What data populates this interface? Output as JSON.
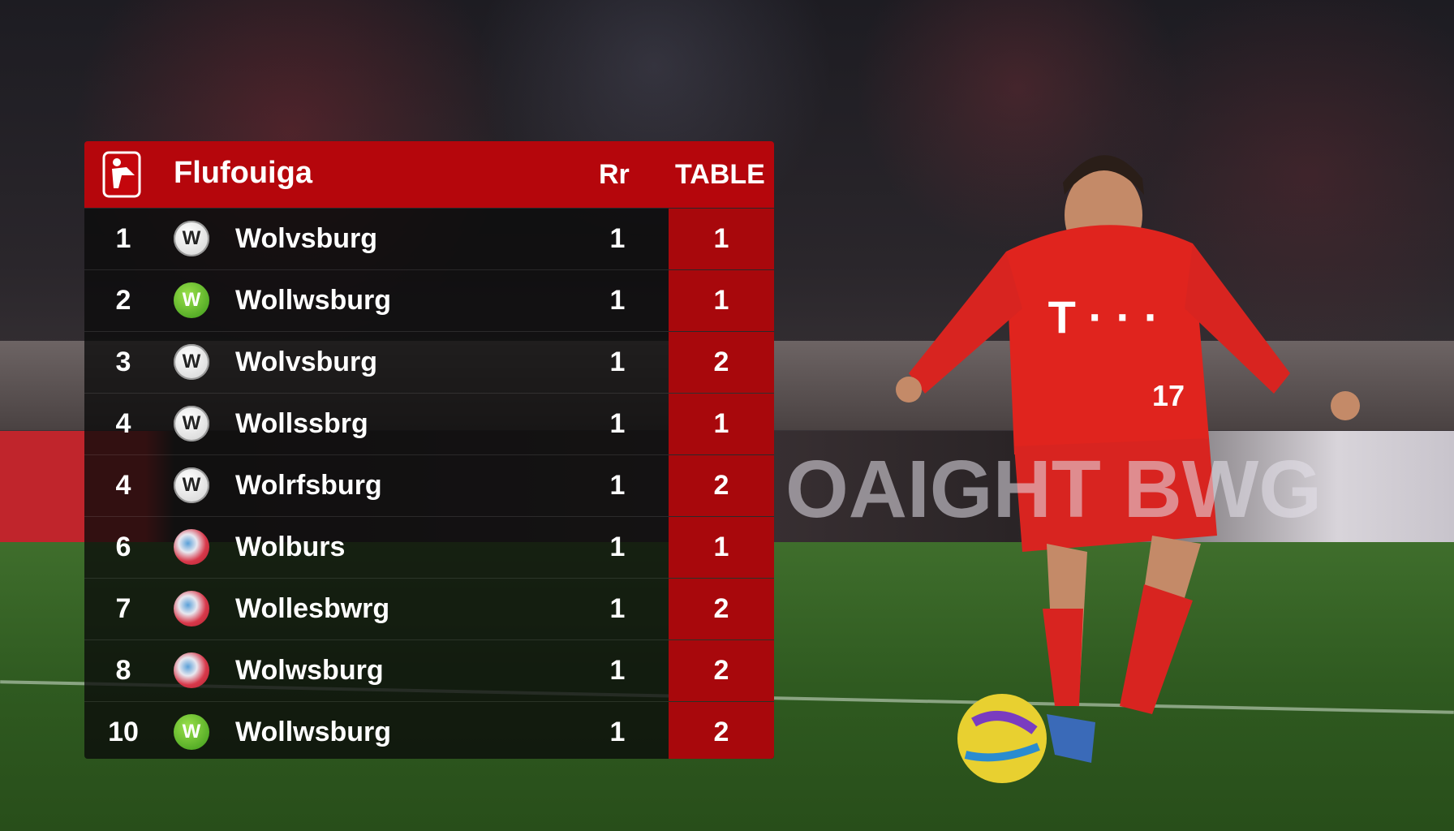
{
  "table": {
    "title": "Flufouiga",
    "col1_header": "Rr",
    "col2_header": "TABLE",
    "rows": [
      {
        "rank": "1",
        "team": "Wolvsburg",
        "crest": "wolf-crest",
        "c1": "1",
        "c2": "1"
      },
      {
        "rank": "2",
        "team": "Wollwsburg",
        "crest": "green-wolf-crest",
        "c1": "1",
        "c2": "1"
      },
      {
        "rank": "3",
        "team": "Wolvsburg",
        "crest": "wolf-crest",
        "c1": "1",
        "c2": "2"
      },
      {
        "rank": "4",
        "team": "Wollssbrg",
        "crest": "wolf-crest",
        "c1": "1",
        "c2": "1"
      },
      {
        "rank": "4",
        "team": "Wolrfsburg",
        "crest": "wolf-crest",
        "c1": "1",
        "c2": "2"
      },
      {
        "rank": "6",
        "team": "Wolburs",
        "crest": "bayern-crest",
        "c1": "1",
        "c2": "1"
      },
      {
        "rank": "7",
        "team": "Wollesbwrg",
        "crest": "bayern-crest",
        "c1": "1",
        "c2": "2"
      },
      {
        "rank": "8",
        "team": "Wolwsburg",
        "crest": "bayern-crest",
        "c1": "1",
        "c2": "2"
      },
      {
        "rank": "10",
        "team": "Wollwsburg",
        "crest": "green-wolf-crest",
        "c1": "1",
        "c2": "2"
      }
    ]
  },
  "background": {
    "ad_text": "OAIGHT BWG",
    "shirt_text": "T · · ·",
    "shirt_number": "17"
  },
  "colors": {
    "header_red": "#b5060c",
    "column_red": "#a8080c",
    "row_dark": "#0a0a0a",
    "pitch": "#3f6e2c"
  }
}
